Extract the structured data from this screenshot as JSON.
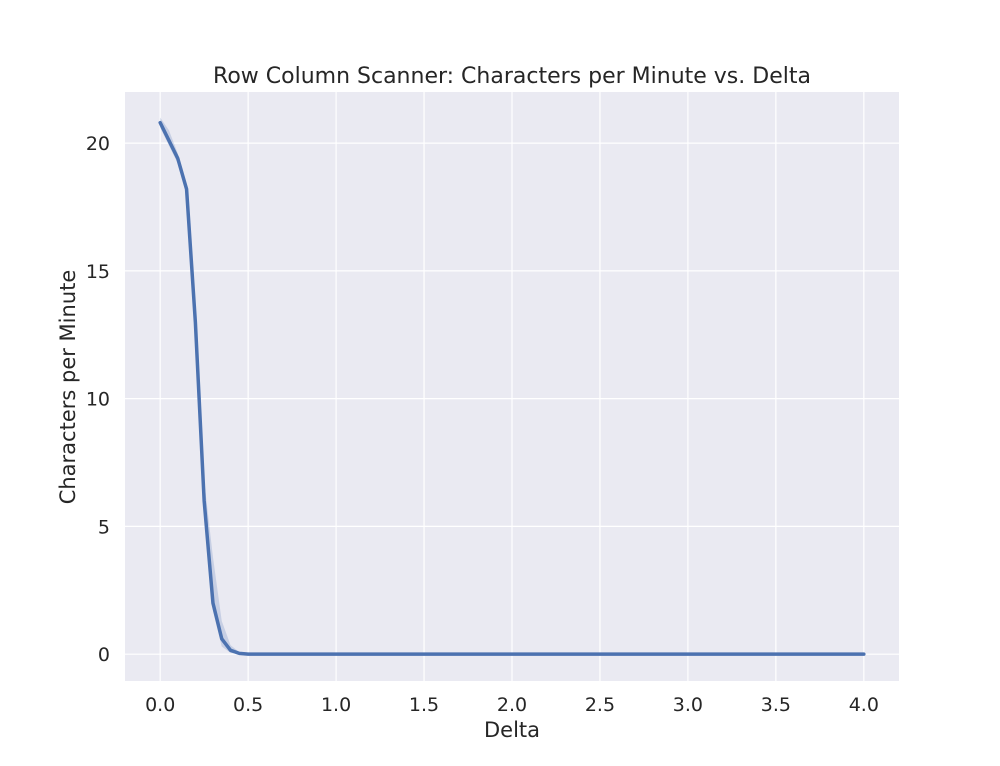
{
  "chart_data": {
    "type": "line",
    "title": "Row Column Scanner: Characters per Minute vs. Delta",
    "xlabel": "Delta",
    "ylabel": "Characters per Minute",
    "xlim": [
      -0.2,
      4.2
    ],
    "ylim": [
      -1.05,
      22.0
    ],
    "xticks": [
      0.0,
      0.5,
      1.0,
      1.5,
      2.0,
      2.5,
      3.0,
      3.5,
      4.0
    ],
    "xtick_labels": [
      "0.0",
      "0.5",
      "1.0",
      "1.5",
      "2.0",
      "2.5",
      "3.0",
      "3.5",
      "4.0"
    ],
    "yticks": [
      0,
      5,
      10,
      15,
      20
    ],
    "ytick_labels": [
      "0",
      "5",
      "10",
      "15",
      "20"
    ],
    "grid": true,
    "style": {
      "background": "#eaeaf2",
      "line_color": "#4c72b0",
      "band_color": "#4c72b0"
    },
    "series": [
      {
        "x": [
          0.0,
          0.05,
          0.1,
          0.15,
          0.2,
          0.25,
          0.3,
          0.35,
          0.4,
          0.45,
          0.5,
          0.6,
          0.8,
          1.0,
          1.5,
          2.0,
          2.5,
          3.0,
          3.5,
          4.0
        ],
        "y": [
          20.8,
          20.1,
          19.4,
          18.2,
          13.0,
          6.0,
          2.0,
          0.6,
          0.15,
          0.03,
          0.0,
          0.0,
          0.0,
          0.0,
          0.0,
          0.0,
          0.0,
          0.0,
          0.0,
          0.0
        ],
        "ci_lower": [
          20.6,
          19.9,
          19.2,
          18.0,
          12.5,
          5.3,
          1.7,
          0.3,
          0.05,
          0.0,
          0.0,
          0.0,
          0.0,
          0.0,
          0.0,
          0.0,
          0.0,
          0.0,
          0.0,
          0.0
        ],
        "ci_upper": [
          21.0,
          20.5,
          19.6,
          18.4,
          13.6,
          6.8,
          3.8,
          1.3,
          0.35,
          0.08,
          0.0,
          0.0,
          0.0,
          0.0,
          0.0,
          0.0,
          0.0,
          0.0,
          0.0,
          0.0
        ]
      }
    ]
  }
}
